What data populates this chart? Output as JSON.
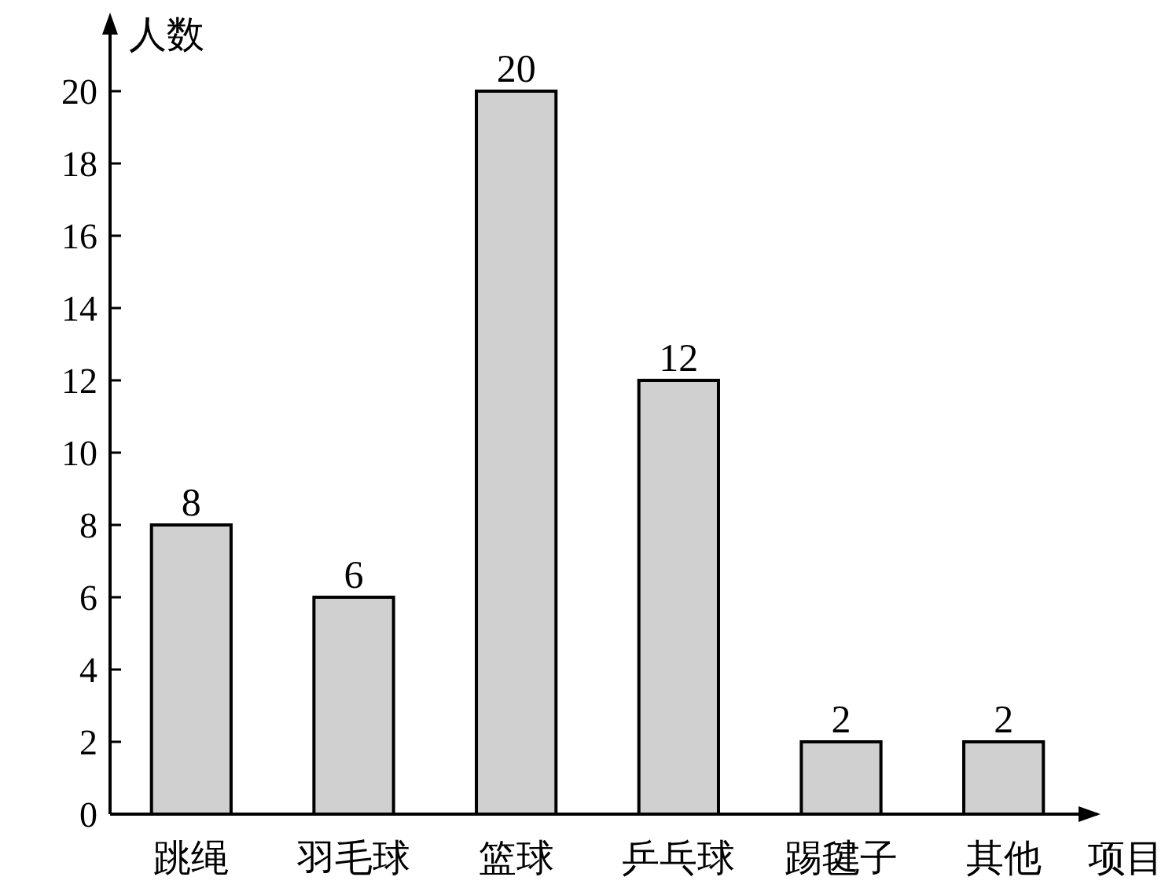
{
  "chart_data": {
    "type": "bar",
    "xlabel": "项目",
    "ylabel": "人数",
    "categories": [
      "跳绳",
      "羽毛球",
      "篮球",
      "乒乓球",
      "踢毽子",
      "其他"
    ],
    "values": [
      8,
      6,
      20,
      12,
      2,
      2
    ],
    "color": "#d0d0d0",
    "ylim": [
      0,
      22
    ],
    "yticks": [
      0,
      2,
      4,
      6,
      8,
      10,
      12,
      14,
      16,
      18,
      20
    ],
    "data_labels": true
  }
}
